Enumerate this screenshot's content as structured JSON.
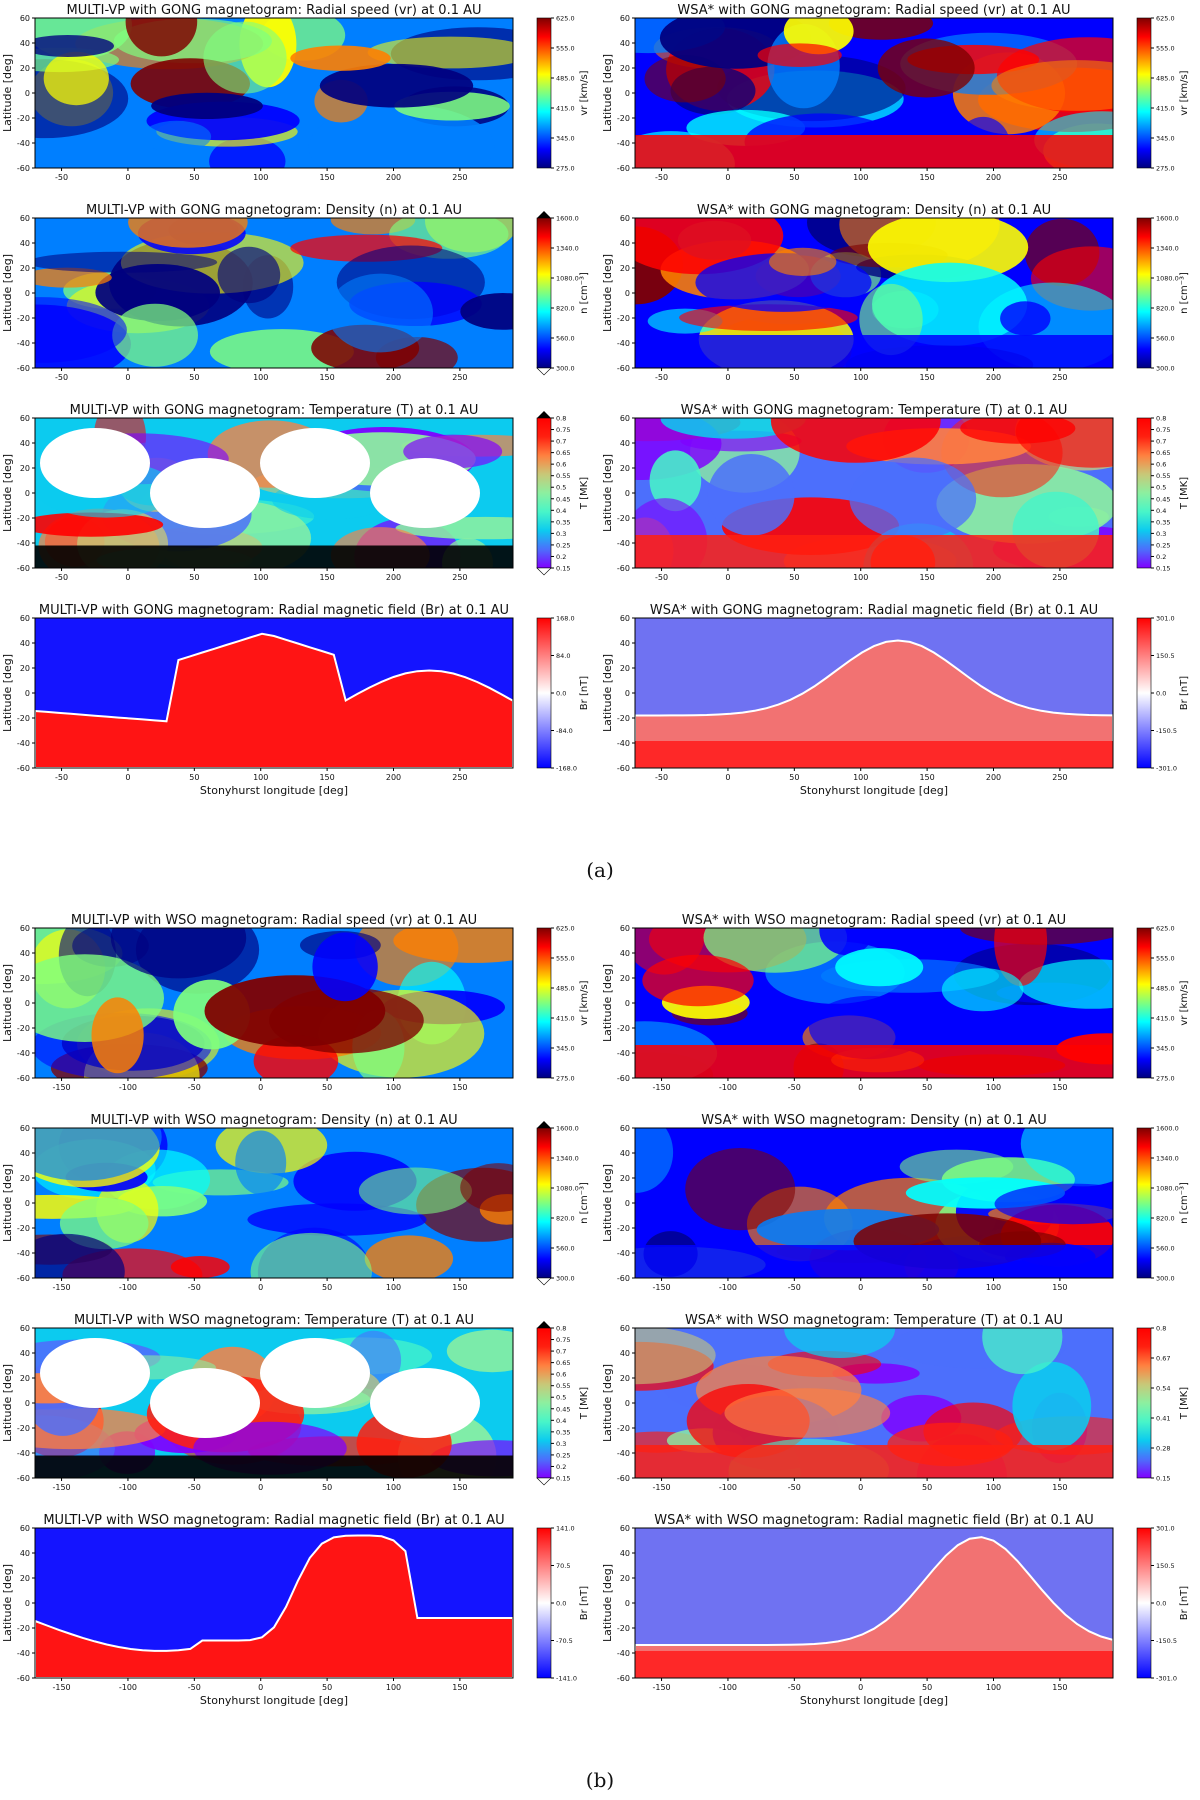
{
  "captions": {
    "a": "(a)",
    "b": "(b)"
  },
  "common": {
    "ylabel": "Latitude [deg]",
    "xlabel": "Stonyhurst longitude [deg]",
    "ylim": [
      -60,
      60
    ],
    "yticks": [
      "60",
      "40",
      "20",
      "0",
      "-20",
      "-40",
      "-60"
    ]
  },
  "colormaps": {
    "jet": [
      "#00007f",
      "#0000ff",
      "#007fff",
      "#00ffff",
      "#7fff7f",
      "#ffff00",
      "#ff7f00",
      "#ff0000",
      "#7f0000"
    ],
    "rainbow": [
      "#8000ff",
      "#4c6ffc",
      "#0ccbef",
      "#48f5c8",
      "#8cf0a0",
      "#c8c878",
      "#ff8040",
      "#ff2010",
      "#ff0000"
    ],
    "bwr": [
      "#0000ff",
      "#8080ff",
      "#ffffff",
      "#ff8080",
      "#ff0000"
    ]
  },
  "chart_data": [
    {
      "type": "heatmap",
      "group": "a",
      "row": 0,
      "col": 0,
      "title": "MULTI-VP with GONG magnetogram: Radial speed (vr) at 0.1 AU",
      "cbar_label": "vr [km/s]",
      "cmap": "jet",
      "cbar_ticks": [
        "625.0",
        "555.0",
        "485.0",
        "415.0",
        "345.0",
        "275.0"
      ],
      "vlim": [
        275,
        625
      ],
      "xticks": [
        "-50",
        "0",
        "50",
        "100",
        "150",
        "200",
        "250"
      ],
      "xlim": [
        -70,
        290
      ],
      "extend": false
    },
    {
      "type": "heatmap",
      "group": "a",
      "row": 0,
      "col": 1,
      "title": "WSA* with GONG magnetogram: Radial speed (vr) at 0.1 AU",
      "cbar_label": "vr [km/s]",
      "cmap": "jet",
      "cbar_ticks": [
        "625.0",
        "555.0",
        "485.0",
        "415.0",
        "345.0",
        "275.0"
      ],
      "vlim": [
        275,
        625
      ],
      "xticks": [
        "-50",
        "0",
        "50",
        "100",
        "150",
        "200",
        "250"
      ],
      "xlim": [
        -70,
        290
      ],
      "extend": false
    },
    {
      "type": "heatmap",
      "group": "a",
      "row": 1,
      "col": 0,
      "title": "MULTI-VP with GONG magnetogram: Density (n) at 0.1 AU",
      "cbar_label": "n [cm⁻³]",
      "cmap": "jet",
      "cbar_ticks": [
        "1600.0",
        "1340.0",
        "1080.0",
        "820.0",
        "560.0",
        "300.0"
      ],
      "vlim": [
        300,
        1600
      ],
      "xticks": [
        "-50",
        "0",
        "50",
        "100",
        "150",
        "200",
        "250"
      ],
      "xlim": [
        -70,
        290
      ],
      "extend": true
    },
    {
      "type": "heatmap",
      "group": "a",
      "row": 1,
      "col": 1,
      "title": "WSA* with GONG magnetogram: Density (n) at 0.1 AU",
      "cbar_label": "n [cm⁻³]",
      "cmap": "jet",
      "cbar_ticks": [
        "1600.0",
        "1340.0",
        "1080.0",
        "820.0",
        "560.0",
        "300.0"
      ],
      "vlim": [
        300,
        1600
      ],
      "xticks": [
        "-50",
        "0",
        "50",
        "100",
        "150",
        "200",
        "250"
      ],
      "xlim": [
        -70,
        290
      ],
      "extend": false
    },
    {
      "type": "heatmap",
      "group": "a",
      "row": 2,
      "col": 0,
      "title": "MULTI-VP with GONG magnetogram: Temperature (T) at 0.1 AU",
      "cbar_label": "T [MK]",
      "cmap": "rainbow",
      "cbar_ticks": [
        "0.8",
        "0.75",
        "0.7",
        "0.65",
        "0.6",
        "0.55",
        "0.5",
        "0.45",
        "0.4",
        "0.35",
        "0.3",
        "0.25",
        "0.2",
        "0.15"
      ],
      "vlim": [
        0.15,
        0.8
      ],
      "xticks": [
        "-50",
        "0",
        "50",
        "100",
        "150",
        "200",
        "250"
      ],
      "xlim": [
        -70,
        290
      ],
      "extend": true
    },
    {
      "type": "heatmap",
      "group": "a",
      "row": 2,
      "col": 1,
      "title": "WSA* with GONG magnetogram: Temperature (T) at 0.1 AU",
      "cbar_label": "T [MK]",
      "cmap": "rainbow",
      "cbar_ticks": [
        "0.8",
        "0.75",
        "0.7",
        "0.65",
        "0.6",
        "0.55",
        "0.5",
        "0.45",
        "0.4",
        "0.35",
        "0.3",
        "0.25",
        "0.2",
        "0.15"
      ],
      "vlim": [
        0.15,
        0.8
      ],
      "xticks": [
        "-50",
        "0",
        "50",
        "100",
        "150",
        "200",
        "250"
      ],
      "xlim": [
        -70,
        290
      ],
      "extend": false
    },
    {
      "type": "heatmap",
      "group": "a",
      "row": 3,
      "col": 0,
      "title": "MULTI-VP with GONG magnetogram: Radial magnetic field (Br) at 0.1 AU",
      "cbar_label": "Br [nT]",
      "cmap": "bwr",
      "cbar_ticks": [
        "168.0",
        "84.0",
        "0.0",
        "-84.0",
        "-168.0"
      ],
      "vlim": [
        -168,
        168
      ],
      "xticks": [
        "-50",
        "0",
        "50",
        "100",
        "150",
        "200",
        "250"
      ],
      "xlim": [
        -70,
        290
      ],
      "extend": false,
      "xlabel": true
    },
    {
      "type": "heatmap",
      "group": "a",
      "row": 3,
      "col": 1,
      "title": "WSA* with GONG magnetogram: Radial magnetic field (Br) at 0.1 AU",
      "cbar_label": "Br [nT]",
      "cmap": "bwr",
      "cbar_ticks": [
        "301.0",
        "150.5",
        "0.0",
        "-150.5",
        "-301.0"
      ],
      "vlim": [
        -301,
        301
      ],
      "xticks": [
        "-50",
        "0",
        "50",
        "100",
        "150",
        "200",
        "250"
      ],
      "xlim": [
        -70,
        290
      ],
      "extend": false,
      "xlabel": true
    },
    {
      "type": "heatmap",
      "group": "b",
      "row": 0,
      "col": 0,
      "title": "MULTI-VP with WSO magnetogram: Radial speed (vr) at 0.1 AU",
      "cbar_label": "vr [km/s]",
      "cmap": "jet",
      "cbar_ticks": [
        "625.0",
        "555.0",
        "485.0",
        "415.0",
        "345.0",
        "275.0"
      ],
      "vlim": [
        275,
        625
      ],
      "xticks": [
        "-150",
        "-100",
        "-50",
        "0",
        "50",
        "100",
        "150"
      ],
      "xlim": [
        -170,
        190
      ],
      "extend": false
    },
    {
      "type": "heatmap",
      "group": "b",
      "row": 0,
      "col": 1,
      "title": "WSA* with WSO magnetogram: Radial speed (vr) at 0.1 AU",
      "cbar_label": "vr [km/s]",
      "cmap": "jet",
      "cbar_ticks": [
        "625.0",
        "555.0",
        "485.0",
        "415.0",
        "345.0",
        "275.0"
      ],
      "vlim": [
        275,
        625
      ],
      "xticks": [
        "-150",
        "-100",
        "-50",
        "0",
        "50",
        "100",
        "150"
      ],
      "xlim": [
        -170,
        190
      ],
      "extend": false
    },
    {
      "type": "heatmap",
      "group": "b",
      "row": 1,
      "col": 0,
      "title": "MULTI-VP with WSO magnetogram: Density (n) at 0.1 AU",
      "cbar_label": "n [cm⁻³]",
      "cmap": "jet",
      "cbar_ticks": [
        "1600.0",
        "1340.0",
        "1080.0",
        "820.0",
        "560.0",
        "300.0"
      ],
      "vlim": [
        300,
        1600
      ],
      "xticks": [
        "-150",
        "-100",
        "-50",
        "0",
        "50",
        "100",
        "150"
      ],
      "xlim": [
        -170,
        190
      ],
      "extend": true
    },
    {
      "type": "heatmap",
      "group": "b",
      "row": 1,
      "col": 1,
      "title": "WSA* with WSO magnetogram: Density (n) at 0.1 AU",
      "cbar_label": "n [cm⁻³]",
      "cmap": "jet",
      "cbar_ticks": [
        "1600.0",
        "1340.0",
        "1080.0",
        "820.0",
        "560.0",
        "300.0"
      ],
      "vlim": [
        300,
        1600
      ],
      "xticks": [
        "-150",
        "-100",
        "-50",
        "0",
        "50",
        "100",
        "150"
      ],
      "xlim": [
        -170,
        190
      ],
      "extend": false
    },
    {
      "type": "heatmap",
      "group": "b",
      "row": 2,
      "col": 0,
      "title": "MULTI-VP with WSO magnetogram: Temperature (T) at 0.1 AU",
      "cbar_label": "T [MK]",
      "cmap": "rainbow",
      "cbar_ticks": [
        "0.8",
        "0.75",
        "0.7",
        "0.65",
        "0.6",
        "0.55",
        "0.5",
        "0.45",
        "0.4",
        "0.35",
        "0.3",
        "0.25",
        "0.2",
        "0.15"
      ],
      "vlim": [
        0.15,
        0.8
      ],
      "xticks": [
        "-150",
        "-100",
        "-50",
        "0",
        "50",
        "100",
        "150"
      ],
      "xlim": [
        -170,
        190
      ],
      "extend": true
    },
    {
      "type": "heatmap",
      "group": "b",
      "row": 2,
      "col": 1,
      "title": "WSA* with WSO magnetogram: Temperature (T) at 0.1 AU",
      "cbar_label": "T [MK]",
      "cmap": "rainbow",
      "cbar_ticks": [
        "0.8",
        "0.67",
        "0.54",
        "0.41",
        "0.28",
        "0.15"
      ],
      "vlim": [
        0.15,
        0.8
      ],
      "xticks": [
        "-150",
        "-100",
        "-50",
        "0",
        "50",
        "100",
        "150"
      ],
      "xlim": [
        -170,
        190
      ],
      "extend": false
    },
    {
      "type": "heatmap",
      "group": "b",
      "row": 3,
      "col": 0,
      "title": "MULTI-VP with WSO magnetogram: Radial magnetic field (Br) at 0.1 AU",
      "cbar_label": "Br [nT]",
      "cmap": "bwr",
      "cbar_ticks": [
        "141.0",
        "70.5",
        "0.0",
        "-70.5",
        "-141.0"
      ],
      "vlim": [
        -141,
        141
      ],
      "xticks": [
        "-150",
        "-100",
        "-50",
        "0",
        "50",
        "100",
        "150"
      ],
      "xlim": [
        -170,
        190
      ],
      "extend": false,
      "xlabel": true
    },
    {
      "type": "heatmap",
      "group": "b",
      "row": 3,
      "col": 1,
      "title": "WSA* with WSO magnetogram: Radial magnetic field (Br) at 0.1 AU",
      "cbar_label": "Br [nT]",
      "cmap": "bwr",
      "cbar_ticks": [
        "301.0",
        "150.5",
        "0.0",
        "-150.5",
        "-301.0"
      ],
      "vlim": [
        -301,
        301
      ],
      "xticks": [
        "-150",
        "-100",
        "-50",
        "0",
        "50",
        "100",
        "150"
      ],
      "xlim": [
        -170,
        190
      ],
      "extend": false,
      "xlabel": true
    }
  ]
}
